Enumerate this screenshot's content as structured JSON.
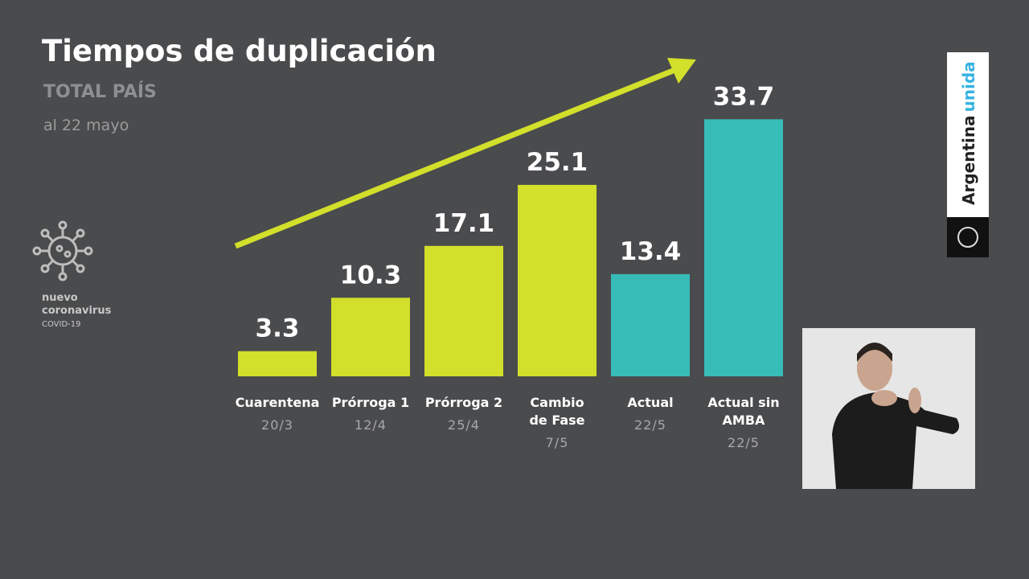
{
  "chart_data": {
    "type": "bar",
    "title": "Tiempos de duplicación",
    "subtitle": "TOTAL PAÍS",
    "date_note": "al 22 mayo",
    "categories": [
      "Cuarentena",
      "Prórroga 1",
      "Prórroga 2",
      "Cambio\nde Fase",
      "Actual",
      "Actual sin\nAMBA"
    ],
    "dates": [
      "20/3",
      "12/4",
      "25/4",
      "7/5",
      "22/5",
      "22/5"
    ],
    "values": [
      3.3,
      10.3,
      17.1,
      25.1,
      13.4,
      33.7
    ],
    "colors": [
      "#d2df2b",
      "#d2df2b",
      "#d2df2b",
      "#d2df2b",
      "#37bcb8",
      "#37bcb8"
    ],
    "ylim": [
      0,
      35
    ]
  },
  "logo": {
    "line1": "nuevo",
    "line2": "coronavirus",
    "line3": "COVID-19"
  },
  "brand": {
    "word1": "Argentina",
    "word2": "unida"
  }
}
